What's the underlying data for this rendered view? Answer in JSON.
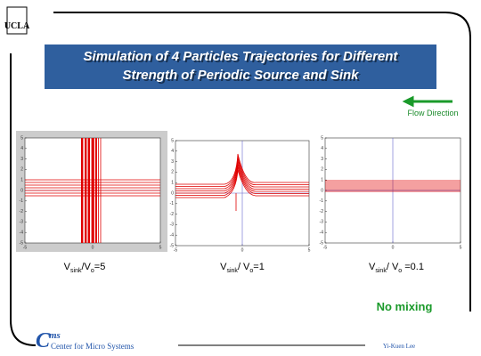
{
  "logo": "UCLA",
  "title_lines": [
    "Simulation of 4 Particles Trajectories for Different",
    "Strength of Periodic Source and Sink"
  ],
  "flow_label": "Flow Direction",
  "plots": [
    {
      "xlim": [
        -5,
        5
      ],
      "ylim": [
        -5,
        5
      ],
      "xticks": [
        -5,
        0,
        5
      ],
      "yticks": [
        5,
        4,
        3,
        2,
        1,
        0,
        -1,
        -2,
        -3,
        -4,
        -5
      ],
      "caption": [
        "V",
        "sink",
        "/V",
        "o",
        "=5"
      ]
    },
    {
      "xlim": [
        -5,
        5
      ],
      "ylim": [
        -5,
        5
      ],
      "xticks": [
        -5,
        0,
        5
      ],
      "yticks": [
        5,
        4,
        3,
        2,
        1,
        0,
        -1,
        -2,
        -3,
        -4,
        -5
      ],
      "caption": [
        "V",
        "sink",
        "/ V",
        "o",
        "=1"
      ]
    },
    {
      "xlim": [
        -5,
        5
      ],
      "ylim": [
        -5,
        5
      ],
      "xticks": [
        -5,
        0,
        5
      ],
      "yticks": [
        5,
        4,
        3,
        2,
        1,
        0,
        -1,
        -2,
        -3,
        -4,
        -5
      ],
      "caption": [
        "V",
        "sink",
        "/ V",
        "o",
        " =0.1"
      ]
    }
  ],
  "note": "No mixing",
  "footer": {
    "logo_c": "C",
    "logo_ms": "ms",
    "center": "Center for Micro Systems",
    "author": "Yi-Kuen Lee"
  }
}
